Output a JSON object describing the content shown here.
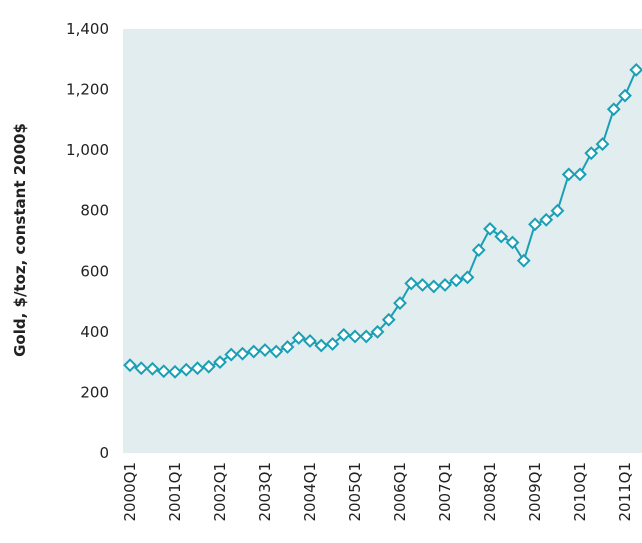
{
  "chart_data": {
    "type": "line",
    "y_label": "Gold, $/toz, constant 2000$",
    "categories": [
      "2000Q1",
      null,
      null,
      null,
      "2001Q1",
      null,
      null,
      null,
      "2002Q1",
      null,
      null,
      null,
      "2003Q1",
      null,
      null,
      null,
      "2004Q1",
      null,
      null,
      null,
      "2005Q1",
      null,
      null,
      null,
      "2006Q1",
      null,
      null,
      null,
      "2007Q1",
      null,
      null,
      null,
      "2008Q1",
      null,
      null,
      null,
      "2009Q1",
      null,
      null,
      null,
      "2010Q1",
      null,
      null,
      null,
      "2011Q1",
      null
    ],
    "series": [
      {
        "name": "Gold",
        "color": "#1a9fb5",
        "values": [
          290,
          280,
          278,
          270,
          268,
          275,
          280,
          285,
          300,
          325,
          328,
          335,
          340,
          335,
          350,
          380,
          370,
          355,
          360,
          390,
          385,
          385,
          400,
          440,
          495,
          560,
          555,
          550,
          555,
          570,
          580,
          670,
          740,
          715,
          695,
          635,
          755,
          770,
          800,
          920,
          920,
          990,
          1020,
          1135,
          1180,
          1265
        ]
      }
    ],
    "ylim": [
      0,
      1400
    ],
    "yticks": [
      0,
      200,
      400,
      600,
      800,
      {
        "value": 1000,
        "label": "1,000"
      },
      {
        "value": 1200,
        "label": "1,200"
      },
      {
        "value": 1400,
        "label": "1,400"
      }
    ],
    "grid": false,
    "background": "#e2edf0"
  }
}
